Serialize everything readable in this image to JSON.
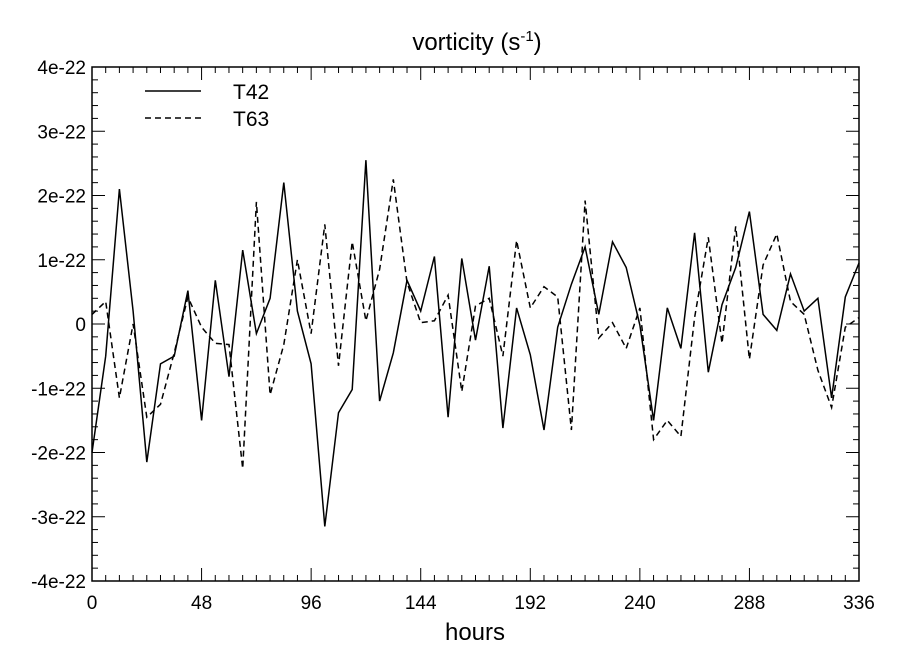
{
  "chart_data": {
    "type": "line",
    "title": "vorticity (s",
    "title_sup": "-1",
    "title_end": ")",
    "xlabel": "hours",
    "ylabel": "",
    "xlim": [
      0,
      336
    ],
    "ylim": [
      -4e-22,
      4e-22
    ],
    "xticks": [
      0,
      48,
      96,
      144,
      192,
      240,
      288,
      336
    ],
    "xtick_labels": [
      "0",
      "48",
      "96",
      "144",
      "192",
      "240",
      "288",
      "336"
    ],
    "yticks": [
      -4e-22,
      -3e-22,
      -2e-22,
      -1e-22,
      0,
      1e-22,
      2e-22,
      3e-22,
      4e-22
    ],
    "ytick_labels": [
      "-4e-22",
      "-3e-22",
      "-2e-22",
      "-1e-22",
      "0",
      "1e-22",
      "2e-22",
      "3e-22",
      "4e-22"
    ],
    "grid": false,
    "legend_position": "top-left",
    "x": [
      0,
      6,
      12,
      18,
      24,
      30,
      36,
      42,
      48,
      54,
      60,
      66,
      72,
      78,
      84,
      90,
      96,
      102,
      108,
      114,
      120,
      126,
      132,
      138,
      144,
      150,
      156,
      162,
      168,
      174,
      180,
      186,
      192,
      198,
      204,
      210,
      216,
      222,
      228,
      234,
      240,
      246,
      252,
      258,
      264,
      270,
      276,
      282,
      288,
      294,
      300,
      306,
      312,
      318,
      324,
      330,
      336
    ],
    "series": [
      {
        "name": "T42",
        "style": "solid",
        "color": "#000000",
        "values": [
          -2e-22,
          -5e-23,
          2.1e-22,
          2e-23,
          -2.15e-22,
          -6.2e-23,
          -5e-23,
          5.2e-23,
          -1.5e-22,
          6.8e-23,
          -8.2e-23,
          1.15e-22,
          -1.5e-23,
          4e-23,
          2.2e-22,
          2e-23,
          -6.2e-23,
          -3.15e-22,
          -1.38e-22,
          -1.02e-22,
          2.55e-22,
          -1.2e-22,
          -4.5e-23,
          6.8e-23,
          2e-23,
          1.05e-22,
          -1.45e-22,
          1.02e-22,
          -2.5e-23,
          9e-23,
          -1.62e-22,
          2.5e-23,
          -4.8e-23,
          -1.65e-22,
          -5e-24,
          6.2e-23,
          1.2e-22,
          1.5e-23,
          1.28e-22,
          8.8e-23,
          -2e-24,
          -1.5e-22,
          2.5e-23,
          -3.8e-23,
          1.42e-22,
          -7.5e-23,
          3e-23,
          8.8e-23,
          1.75e-22,
          1.5e-23,
          -1e-23,
          7.8e-23,
          2e-23,
          4e-23,
          -1.15e-22,
          4.2e-23,
          9.5e-23
        ]
      },
      {
        "name": "T63",
        "style": "dashed",
        "color": "#000000",
        "values": [
          1.5e-23,
          3.5e-23,
          -1.15e-22,
          0,
          -1.45e-22,
          -1.25e-22,
          -4.5e-23,
          4.2e-23,
          -5e-24,
          -3e-23,
          -3.2e-23,
          -2.25e-22,
          1.9e-22,
          -1.1e-22,
          -3.2e-23,
          1e-22,
          -1.5e-23,
          1.55e-22,
          -6.5e-23,
          1.28e-22,
          5e-24,
          8.5e-23,
          2.25e-22,
          6.5e-23,
          2e-24,
          5e-24,
          4.5e-23,
          -1.05e-22,
          2.8e-23,
          4e-23,
          -5e-23,
          1.3e-22,
          2.5e-23,
          5.8e-23,
          4.2e-23,
          -1.65e-22,
          1.92e-22,
          -2.2e-23,
          2e-24,
          -3.8e-23,
          2.5e-23,
          -1.8e-22,
          -1.5e-22,
          -1.75e-22,
          1e-23,
          1.35e-22,
          -3e-23,
          1.52e-22,
          -5.5e-23,
          9.2e-23,
          1.4e-22,
          3.5e-23,
          1.5e-23,
          -7.2e-23,
          -1.3e-22,
          -5e-24,
          1e-23
        ]
      }
    ]
  }
}
